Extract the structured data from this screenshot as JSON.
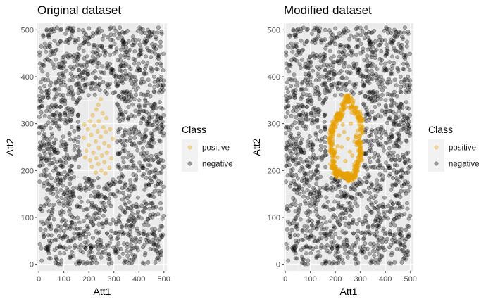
{
  "chart_data": [
    {
      "type": "scatter",
      "title": "Original dataset",
      "xlabel": "Att1",
      "ylabel": "Att2",
      "xlim": [
        -6,
        512
      ],
      "ylim": [
        -14,
        514
      ],
      "xticks": [
        0,
        100,
        200,
        300,
        400,
        500
      ],
      "yticks": [
        0,
        100,
        200,
        300,
        400,
        500
      ],
      "grid": true,
      "legend": {
        "title": "Class",
        "placement": "right",
        "entries": [
          {
            "label": "positive",
            "color": "#E69F00"
          },
          {
            "label": "negative",
            "color": "#000000"
          }
        ]
      },
      "series": [
        {
          "name": "positive",
          "color": "#E69F00",
          "opacity": 0.35,
          "points": [
            [
              248,
              352
            ],
            [
              238,
              340
            ],
            [
              230,
              330
            ],
            [
              255,
              322
            ],
            [
              215,
              318
            ],
            [
              270,
              312
            ],
            [
              205,
              305
            ],
            [
              240,
              305
            ],
            [
              182,
              298
            ],
            [
              222,
              296
            ],
            [
              258,
              292
            ],
            [
              196,
              288
            ],
            [
              285,
              288
            ],
            [
              235,
              283
            ],
            [
              268,
              282
            ],
            [
              210,
              276
            ],
            [
              248,
              272
            ],
            [
              180,
              270
            ],
            [
              295,
              268
            ],
            [
              228,
              262
            ],
            [
              262,
              258
            ],
            [
              200,
              254
            ],
            [
              280,
              252
            ],
            [
              240,
              248
            ],
            [
              190,
              242
            ],
            [
              218,
              238
            ],
            [
              272,
              238
            ],
            [
              252,
              232
            ],
            [
              185,
              228
            ],
            [
              230,
              226
            ],
            [
              290,
              226
            ],
            [
              205,
              222
            ],
            [
              262,
              218
            ],
            [
              238,
              214
            ],
            [
              212,
              208
            ],
            [
              282,
              206
            ],
            [
              250,
              200
            ],
            [
              228,
              196
            ],
            [
              266,
              194
            ]
          ]
        },
        {
          "name": "negative",
          "color": "#000000",
          "opacity": 0.3,
          "generated": {
            "count": 1600,
            "x_range": [
              0,
              500
            ],
            "y_range": [
              0,
              505
            ],
            "excluded_region": {
              "x": [
                165,
                310
              ],
              "y": [
                185,
                360
              ]
            }
          }
        }
      ]
    },
    {
      "type": "scatter",
      "title": "Modified dataset",
      "xlabel": "Att1",
      "ylabel": "Att2",
      "xlim": [
        -6,
        512
      ],
      "ylim": [
        -14,
        514
      ],
      "xticks": [
        0,
        100,
        200,
        300,
        400,
        500
      ],
      "yticks": [
        0,
        100,
        200,
        300,
        400,
        500
      ],
      "grid": true,
      "legend": {
        "title": "Class",
        "placement": "right",
        "entries": [
          {
            "label": "positive",
            "color": "#E69F00"
          },
          {
            "label": "negative",
            "color": "#000000"
          }
        ]
      },
      "series": [
        {
          "name": "positive",
          "color": "#E69F00",
          "opacity": 0.45,
          "ring": {
            "points": [
              [
                250,
                358
              ],
              [
                265,
                340
              ],
              [
                282,
                322
              ],
              [
                298,
                312
              ],
              [
                302,
                288
              ],
              [
                290,
                268
              ],
              [
                302,
                245
              ],
              [
                298,
                222
              ],
              [
                282,
                208
              ],
              [
                278,
                188
              ],
              [
                258,
                185
              ],
              [
                240,
                190
              ],
              [
                218,
                192
              ],
              [
                200,
                198
              ],
              [
                188,
                215
              ],
              [
                192,
                238
              ],
              [
                182,
                262
              ],
              [
                186,
                288
              ],
              [
                200,
                305
              ],
              [
                218,
                322
              ],
              [
                235,
                340
              ]
            ],
            "count": 420,
            "jitter": 9
          },
          "interior": [
            [
              230,
              298
            ],
            [
              262,
              300
            ],
            [
              215,
              275
            ],
            [
              250,
              268
            ],
            [
              276,
              262
            ],
            [
              225,
              250
            ],
            [
              258,
              240
            ],
            [
              210,
              228
            ],
            [
              240,
              220
            ],
            [
              268,
              232
            ],
            [
              235,
              282
            ],
            [
              208,
              252
            ]
          ]
        },
        {
          "name": "negative",
          "color": "#000000",
          "opacity": 0.3,
          "generated": {
            "count": 1600,
            "x_range": [
              0,
              500
            ],
            "y_range": [
              0,
              505
            ],
            "excluded_region": {
              "x": [
                165,
                310
              ],
              "y": [
                185,
                360
              ]
            }
          }
        }
      ]
    }
  ]
}
